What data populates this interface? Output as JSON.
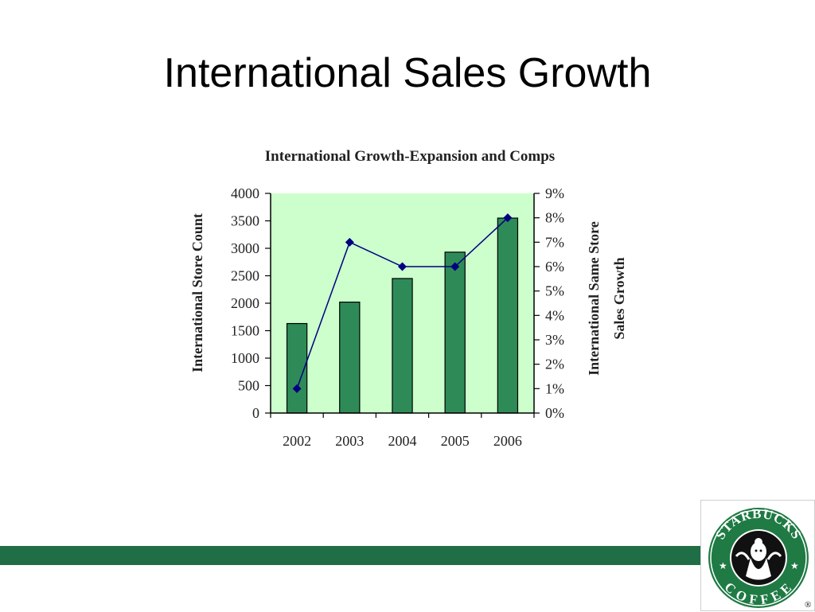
{
  "slide": {
    "title": "International Sales Growth"
  },
  "logo": {
    "top_text": "STARBUCKS",
    "bottom_text": "COFFEE",
    "registered": "®"
  },
  "colors": {
    "band_green": "#1f6e45",
    "plot_background": "#ccffcc",
    "bar_fill": "#2e8b57",
    "line": "#000080"
  },
  "chart_data": {
    "type": "bar",
    "title": "International Growth-Expansion and Comps",
    "categories": [
      "2002",
      "2003",
      "2004",
      "2005",
      "2006"
    ],
    "series": [
      {
        "type": "bar",
        "axis": "left",
        "values": [
          1630,
          2020,
          2450,
          2930,
          3550
        ]
      },
      {
        "type": "line",
        "axis": "right",
        "values": [
          1,
          7,
          6,
          6,
          8
        ]
      }
    ],
    "ylabel": "International Store Count",
    "ylim": [
      0,
      4000
    ],
    "yticks": [
      "0",
      "500",
      "1000",
      "1500",
      "2000",
      "2500",
      "3000",
      "3500",
      "4000"
    ],
    "ylabel_right": "International Same Store Sales Growth",
    "ylim_right": [
      0,
      9
    ],
    "yticks_right": [
      "0%",
      "1%",
      "2%",
      "3%",
      "4%",
      "5%",
      "6%",
      "7%",
      "8%",
      "9%"
    ],
    "grid": false
  }
}
